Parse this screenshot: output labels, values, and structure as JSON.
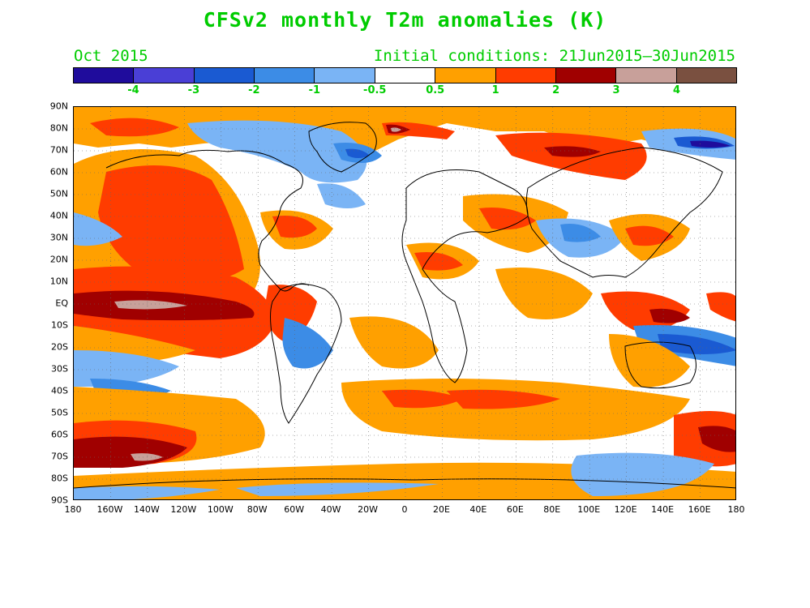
{
  "title": "CFSv2 monthly T2m anomalies (K)",
  "valid_month": "Oct 2015",
  "initial_conditions": "Initial conditions: 21Jun2015–30Jun2015",
  "colorbar": {
    "colors": [
      "#1f0c9c",
      "#4a3fd6",
      "#1a5ad2",
      "#3c8ce6",
      "#7ab4f5",
      "#ffffff",
      "#ffa000",
      "#ff3c00",
      "#a00000",
      "#c8a09a",
      "#7a5040"
    ],
    "labels": [
      "-4",
      "-3",
      "-2",
      "-1",
      "-0.5",
      "0.5",
      "1",
      "2",
      "3",
      "4"
    ]
  },
  "axes": {
    "lat_labels": [
      "90N",
      "80N",
      "70N",
      "60N",
      "50N",
      "40N",
      "30N",
      "20N",
      "10N",
      "EQ",
      "10S",
      "20S",
      "30S",
      "40S",
      "50S",
      "60S",
      "70S",
      "80S",
      "90S"
    ],
    "lon_labels": [
      "180",
      "160W",
      "140W",
      "120W",
      "100W",
      "80W",
      "60W",
      "40W",
      "20W",
      "0",
      "20E",
      "40E",
      "60E",
      "80E",
      "100E",
      "120E",
      "140E",
      "160E",
      "180"
    ]
  }
}
